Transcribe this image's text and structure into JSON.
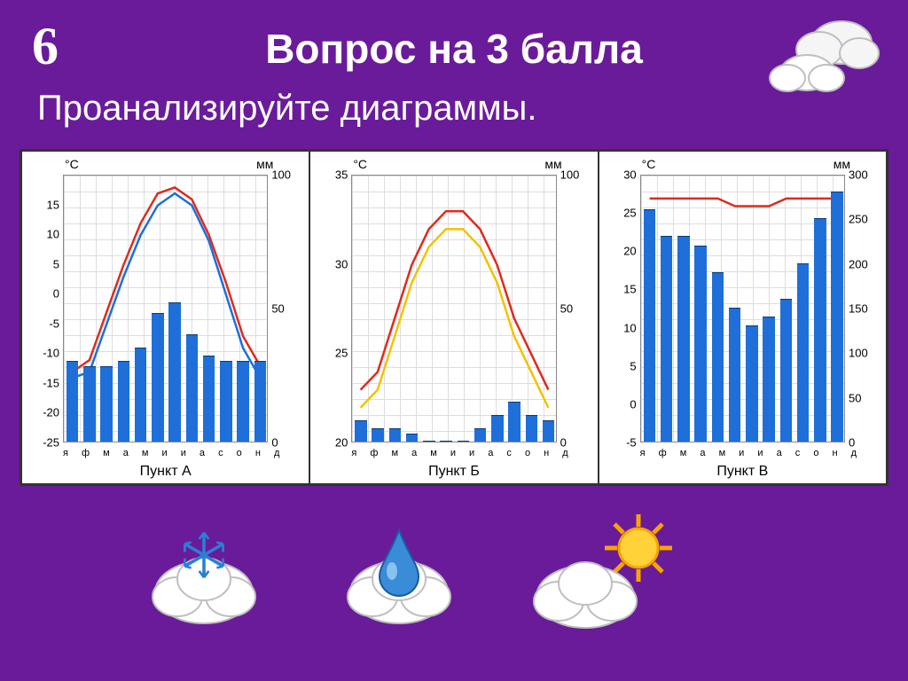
{
  "slide": {
    "corner_number": "6",
    "title": "Вопрос на 3 балла",
    "subtitle": "Проанализируйте диаграммы.",
    "bg_color": "#6a1b9a"
  },
  "months": [
    "я",
    "ф",
    "м",
    "а",
    "м",
    "и",
    "и",
    "а",
    "с",
    "о",
    "н",
    "д"
  ],
  "unit_temp": "°C",
  "unit_precip": "мм",
  "line_red_color": "#e02a1f",
  "line_blue_color": "#1e6fd9",
  "bar_color": "#1e6fd9",
  "grid_color": "#dddddd",
  "chartA": {
    "caption": "Пункт А",
    "temp_range": [
      -25,
      20
    ],
    "temp_ticks": [
      -25,
      -20,
      -15,
      -10,
      -5,
      0,
      5,
      10,
      15
    ],
    "precip_range": [
      0,
      100
    ],
    "precip_ticks": [
      0,
      50,
      100
    ],
    "red_line": [
      -13,
      -11,
      -3,
      5,
      12,
      17,
      18,
      16,
      10,
      2,
      -7,
      -12
    ],
    "blue_line": [
      -14,
      -13,
      -5,
      3,
      10,
      15,
      17,
      15,
      9,
      0,
      -9,
      -14
    ],
    "bars": [
      30,
      28,
      28,
      30,
      35,
      48,
      52,
      40,
      32,
      30,
      30,
      30
    ]
  },
  "chartB": {
    "caption": "Пункт Б",
    "temp_range": [
      20,
      35
    ],
    "temp_ticks": [
      20,
      25,
      30,
      35
    ],
    "precip_range": [
      0,
      100
    ],
    "precip_ticks": [
      0,
      50,
      100
    ],
    "red_line": [
      23,
      24,
      27,
      30,
      32,
      33,
      33,
      32,
      30,
      27,
      25,
      23
    ],
    "yellow_line": [
      22,
      23,
      26,
      29,
      31,
      32,
      32,
      31,
      29,
      26,
      24,
      22
    ],
    "bars": [
      8,
      5,
      5,
      3,
      0,
      0,
      0,
      5,
      10,
      15,
      10,
      8
    ]
  },
  "chartC": {
    "caption": "Пункт В",
    "temp_range": [
      -5,
      30
    ],
    "temp_ticks": [
      -5,
      0,
      5,
      10,
      15,
      20,
      25,
      30
    ],
    "precip_range": [
      0,
      300
    ],
    "precip_ticks": [
      0,
      50,
      100,
      150,
      200,
      250,
      300
    ],
    "red_line": [
      27,
      27,
      27,
      27,
      27,
      26,
      26,
      26,
      27,
      27,
      27,
      27
    ],
    "bars": [
      260,
      230,
      230,
      220,
      190,
      150,
      130,
      140,
      160,
      200,
      250,
      280
    ]
  }
}
